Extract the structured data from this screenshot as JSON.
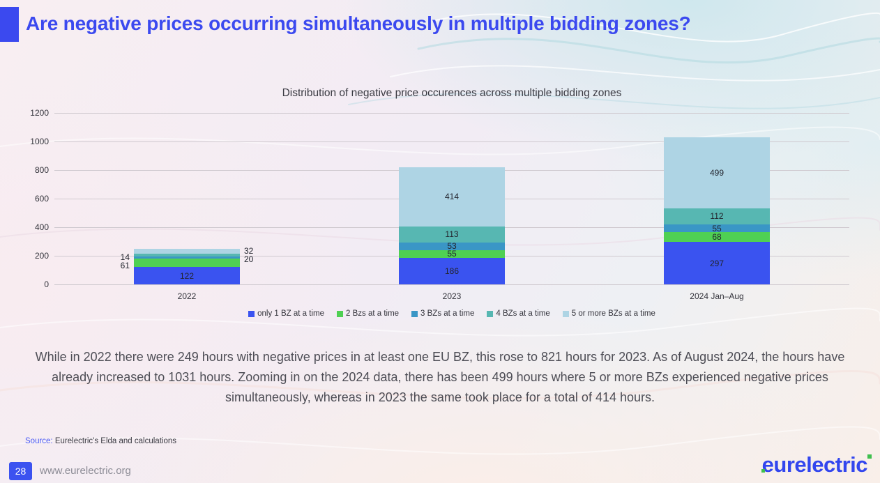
{
  "slide": {
    "title": "Are negative prices occurring simultaneously in multiple bidding zones?",
    "body_text": "While in 2022 there were 249 hours with negative prices in at least one EU BZ, this rose to 821 hours for 2023. As of August 2024, the hours have already increased to 1031 hours. Zooming in on the 2024 data, there has been 499 hours where 5 or more BZs experienced negative prices simultaneously, whereas in 2023 the same took place for a total of 414 hours.",
    "source_label": "Source:",
    "source_text": "Eurelectric's Elda and calculations",
    "footer": {
      "page_number": "28",
      "website": "www.eurelectric.org",
      "logo_text": "eurelectric"
    },
    "accent_color": "#3b49ef"
  },
  "chart_data": {
    "type": "bar",
    "stacked": true,
    "title": "Distribution of negative price occurences across multiple bidding zones",
    "categories": [
      "2022",
      "2023",
      "2024 Jan–Aug"
    ],
    "series": [
      {
        "name": "only 1 BZ at a time",
        "color": "#3a53f0",
        "values": [
          122,
          186,
          297
        ]
      },
      {
        "name": "2 Bzs at a time",
        "color": "#4fd053",
        "values": [
          61,
          55,
          68
        ]
      },
      {
        "name": "3 BZs at a time",
        "color": "#3a96c6",
        "values": [
          14,
          53,
          55
        ]
      },
      {
        "name": "4 BZs at a time",
        "color": "#57b7b2",
        "values": [
          20,
          113,
          112
        ]
      },
      {
        "name": "5 or more BZs at a time",
        "color": "#aed4e4",
        "values": [
          32,
          414,
          499
        ]
      }
    ],
    "totals": [
      249,
      821,
      1031
    ],
    "ylim": [
      0,
      1200
    ],
    "yticks": [
      0,
      200,
      400,
      600,
      800,
      1000,
      1200
    ],
    "grid": true,
    "legend_position": "bottom",
    "label_placement": [
      [
        "inside",
        "left",
        "left",
        "right",
        "right"
      ],
      [
        "inside",
        "inside",
        "inside",
        "inside",
        "inside"
      ],
      [
        "inside",
        "inside",
        "inside",
        "inside",
        "inside"
      ]
    ]
  }
}
